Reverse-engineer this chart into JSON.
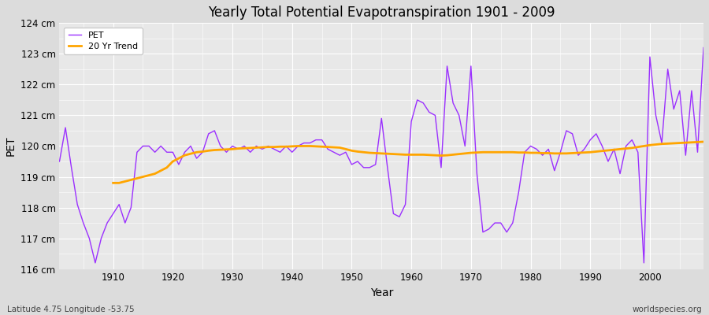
{
  "title": "Yearly Total Potential Evapotranspiration 1901 - 2009",
  "xlabel": "Year",
  "ylabel": "PET",
  "subtitle_left": "Latitude 4.75 Longitude -53.75",
  "subtitle_right": "worldspecies.org",
  "pet_color": "#9B30FF",
  "trend_color": "#FFA500",
  "background_color": "#DCDCDC",
  "plot_bg_color": "#E8E8E8",
  "grid_color": "#FFFFFF",
  "ylim": [
    116,
    124
  ],
  "yticks": [
    116,
    117,
    118,
    119,
    120,
    121,
    122,
    123,
    124
  ],
  "ytick_labels": [
    "116 cm",
    "117 cm",
    "118 cm",
    "119 cm",
    "120 cm",
    "121 cm",
    "122 cm",
    "123 cm",
    "124 cm"
  ],
  "years": [
    1901,
    1902,
    1903,
    1904,
    1905,
    1906,
    1907,
    1908,
    1909,
    1910,
    1911,
    1912,
    1913,
    1914,
    1915,
    1916,
    1917,
    1918,
    1919,
    1920,
    1921,
    1922,
    1923,
    1924,
    1925,
    1926,
    1927,
    1928,
    1929,
    1930,
    1931,
    1932,
    1933,
    1934,
    1935,
    1936,
    1937,
    1938,
    1939,
    1940,
    1941,
    1942,
    1943,
    1944,
    1945,
    1946,
    1947,
    1948,
    1949,
    1950,
    1951,
    1952,
    1953,
    1954,
    1955,
    1956,
    1957,
    1958,
    1959,
    1960,
    1961,
    1962,
    1963,
    1964,
    1965,
    1966,
    1967,
    1968,
    1969,
    1970,
    1971,
    1972,
    1973,
    1974,
    1975,
    1976,
    1977,
    1978,
    1979,
    1980,
    1981,
    1982,
    1983,
    1984,
    1985,
    1986,
    1987,
    1988,
    1989,
    1990,
    1991,
    1992,
    1993,
    1994,
    1995,
    1996,
    1997,
    1998,
    1999,
    2000,
    2001,
    2002,
    2003,
    2004,
    2005,
    2006,
    2007,
    2008,
    2009
  ],
  "pet_values": [
    119.5,
    120.6,
    119.3,
    118.1,
    117.5,
    117.0,
    116.2,
    117.0,
    117.5,
    117.8,
    118.1,
    117.5,
    118.0,
    119.8,
    120.0,
    120.0,
    119.8,
    120.0,
    119.8,
    119.8,
    119.4,
    119.8,
    120.0,
    119.6,
    119.8,
    120.4,
    120.5,
    120.0,
    119.8,
    120.0,
    119.9,
    120.0,
    119.8,
    120.0,
    119.9,
    120.0,
    119.9,
    119.8,
    120.0,
    119.8,
    120.0,
    120.1,
    120.1,
    120.2,
    120.2,
    119.9,
    119.8,
    119.7,
    119.8,
    119.4,
    119.5,
    119.3,
    119.3,
    119.4,
    120.9,
    119.3,
    117.8,
    117.7,
    118.1,
    120.8,
    121.5,
    121.4,
    121.1,
    121.0,
    119.3,
    122.6,
    121.4,
    121.0,
    120.0,
    122.6,
    119.1,
    117.2,
    117.3,
    117.5,
    117.5,
    117.2,
    117.5,
    118.5,
    119.8,
    120.0,
    119.9,
    119.7,
    119.9,
    119.2,
    119.8,
    120.5,
    120.4,
    119.7,
    119.9,
    120.2,
    120.4,
    120.0,
    119.5,
    119.9,
    119.1,
    120.0,
    120.2,
    119.8,
    116.2,
    122.9,
    121.0,
    120.1,
    122.5,
    121.2,
    121.8,
    119.7,
    121.8,
    119.8,
    123.2
  ],
  "trend_years": [
    1910,
    1911,
    1912,
    1913,
    1914,
    1915,
    1916,
    1917,
    1918,
    1919,
    1920,
    1921,
    1922,
    1923,
    1924,
    1925,
    1926,
    1927,
    1928,
    1929,
    1930,
    1931,
    1932,
    1933,
    1934,
    1935,
    1936,
    1937,
    1938,
    1939,
    1940,
    1941,
    1942,
    1943,
    1944,
    1945,
    1946,
    1947,
    1948,
    1949,
    1950,
    1951,
    1952,
    1953,
    1954,
    1955,
    1956,
    1957,
    1958,
    1959,
    1960,
    1961,
    1962,
    1963,
    1964,
    1965,
    1966,
    1967,
    1968,
    1969,
    1970,
    1971,
    1972,
    1973,
    1974,
    1975,
    1976,
    1977,
    1978,
    1979,
    1980,
    1981,
    1982,
    1983,
    1984,
    1985,
    1986,
    1987,
    1988,
    1989,
    1990,
    1991,
    1992,
    1993,
    1994,
    1995,
    1996,
    1997,
    1998,
    1999,
    2000,
    2001,
    2002,
    2003,
    2004,
    2005,
    2006,
    2007,
    2008,
    2009
  ],
  "trend_values": [
    118.8,
    118.8,
    118.85,
    118.9,
    118.95,
    119.0,
    119.05,
    119.1,
    119.2,
    119.3,
    119.5,
    119.6,
    119.7,
    119.75,
    119.8,
    119.82,
    119.85,
    119.87,
    119.88,
    119.89,
    119.9,
    119.92,
    119.93,
    119.94,
    119.95,
    119.96,
    119.97,
    119.97,
    119.98,
    119.98,
    119.99,
    120.0,
    120.0,
    120.0,
    119.99,
    119.98,
    119.97,
    119.96,
    119.95,
    119.9,
    119.85,
    119.82,
    119.8,
    119.78,
    119.77,
    119.76,
    119.75,
    119.74,
    119.73,
    119.72,
    119.72,
    119.72,
    119.72,
    119.71,
    119.7,
    119.69,
    119.7,
    119.72,
    119.74,
    119.76,
    119.78,
    119.79,
    119.8,
    119.8,
    119.8,
    119.8,
    119.8,
    119.8,
    119.79,
    119.79,
    119.78,
    119.78,
    119.77,
    119.77,
    119.76,
    119.76,
    119.76,
    119.77,
    119.78,
    119.79,
    119.8,
    119.82,
    119.84,
    119.86,
    119.88,
    119.9,
    119.92,
    119.94,
    119.97,
    120.0,
    120.03,
    120.05,
    120.07,
    120.08,
    120.09,
    120.1,
    120.11,
    120.12,
    120.13,
    120.14
  ]
}
